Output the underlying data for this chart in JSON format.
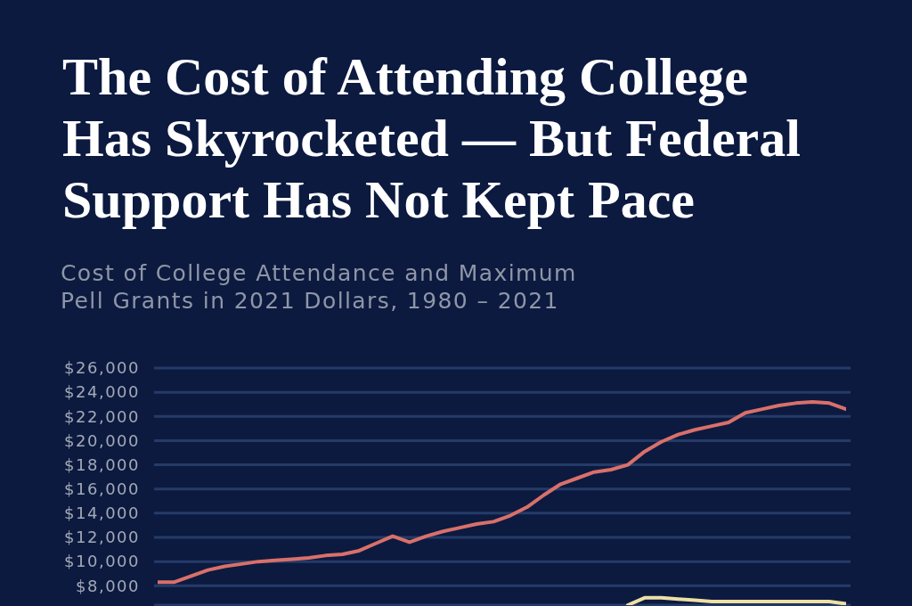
{
  "chart_data": {
    "type": "line",
    "title": "The Cost of Attending College Has Skyrocketed — But Federal Support Has Not Kept Pace",
    "subtitle": "Cost of College Attendance and Maximum Pell Grants in 2021 Dollars, 1980 – 2021",
    "categories": [
      null,
      null,
      null,
      null,
      null,
      null,
      null,
      null,
      null,
      null,
      null,
      null,
      null,
      null,
      null,
      null,
      null,
      null,
      null,
      null,
      null,
      null,
      null,
      null,
      null,
      null,
      null,
      null,
      null,
      null,
      null,
      null,
      null,
      null,
      null,
      null,
      null,
      null,
      null,
      null,
      null,
      null
    ],
    "series": [
      {
        "color": "#d9706a",
        "values": [
          8300,
          8300,
          8800,
          9300,
          9600,
          9800,
          10000,
          10100,
          10200,
          10300,
          10500,
          10600,
          10900,
          11500,
          12100,
          11600,
          12100,
          12500,
          12800,
          13100,
          13300,
          13800,
          14500,
          15500,
          16400,
          16900,
          17400,
          17600,
          18000,
          19100,
          19900,
          20500,
          20900,
          21200,
          21500,
          22300,
          22600,
          22900,
          23100,
          23200,
          23100,
          22600
        ]
      },
      {
        "color": "#eee0a4",
        "values": [
          null,
          null,
          null,
          null,
          null,
          null,
          null,
          null,
          null,
          null,
          null,
          null,
          null,
          null,
          null,
          null,
          null,
          null,
          null,
          null,
          null,
          null,
          null,
          null,
          null,
          null,
          null,
          null,
          6400,
          7000,
          7000,
          6900,
          6800,
          6700,
          6700,
          6700,
          6700,
          6700,
          6700,
          6700,
          6700,
          6500
        ]
      }
    ],
    "ylim": [
      6400,
      26000
    ],
    "yticks": [
      {
        "value": 8000,
        "label": "$8,000"
      },
      {
        "value": 10000,
        "label": "$10,000"
      },
      {
        "value": 12000,
        "label": "$12,000"
      },
      {
        "value": 14000,
        "label": "$14,000"
      },
      {
        "value": 16000,
        "label": "$16,000"
      },
      {
        "value": 18000,
        "label": "$18,000"
      },
      {
        "value": 20000,
        "label": "$20,000"
      },
      {
        "value": 22000,
        "label": "$22,000"
      },
      {
        "value": 24000,
        "label": "$24,000"
      },
      {
        "value": 26000,
        "label": "$26,000"
      }
    ],
    "grid": "y",
    "tick_labels": "y"
  }
}
